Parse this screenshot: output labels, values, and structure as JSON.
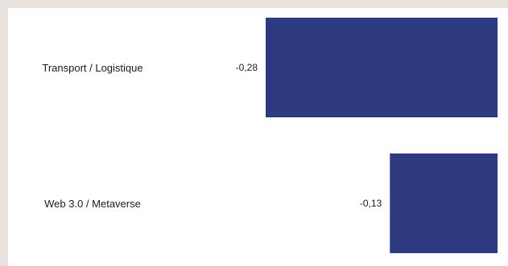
{
  "chart_data": {
    "type": "bar",
    "orientation": "horizontal",
    "categories": [
      "Transport / Logistique",
      "Web 3.0 / Metaverse"
    ],
    "values": [
      -0.28,
      -0.13
    ],
    "value_labels": [
      "-0,28",
      "-0,13"
    ],
    "bar_color": "#2e3a80",
    "xlim": [
      -0.28,
      0
    ],
    "grid": false,
    "legend": "none"
  }
}
